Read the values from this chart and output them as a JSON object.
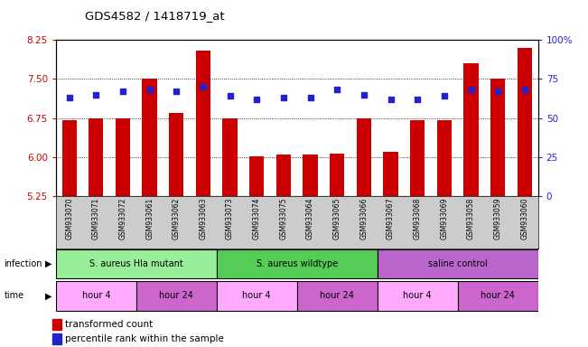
{
  "title": "GDS4582 / 1418719_at",
  "samples": [
    "GSM933070",
    "GSM933071",
    "GSM933072",
    "GSM933061",
    "GSM933062",
    "GSM933063",
    "GSM933073",
    "GSM933074",
    "GSM933075",
    "GSM933064",
    "GSM933065",
    "GSM933066",
    "GSM933067",
    "GSM933068",
    "GSM933069",
    "GSM933058",
    "GSM933059",
    "GSM933060"
  ],
  "bar_values": [
    6.7,
    6.75,
    6.75,
    7.5,
    6.85,
    8.05,
    6.75,
    6.02,
    6.05,
    6.05,
    6.07,
    6.75,
    6.1,
    6.7,
    6.7,
    7.8,
    7.5,
    8.1
  ],
  "percentile_values": [
    63,
    65,
    67,
    68,
    67,
    70,
    64,
    62,
    63,
    63,
    68,
    65,
    62,
    62,
    64,
    68,
    67,
    68
  ],
  "ylim_left": [
    5.25,
    8.25
  ],
  "ylim_right": [
    0,
    100
  ],
  "yticks_left": [
    5.25,
    6.0,
    6.75,
    7.5,
    8.25
  ],
  "yticks_right": [
    0,
    25,
    50,
    75,
    100
  ],
  "grid_values": [
    6.0,
    6.75,
    7.5
  ],
  "bar_color": "#cc0000",
  "dot_color": "#2222cc",
  "bar_bottom": 5.25,
  "infection_color_light": "#99ee99",
  "infection_color_dark": "#55cc55",
  "saline_color": "#bb66cc",
  "time_color_light": "#ffaaff",
  "time_color_dark": "#cc66cc",
  "bg_color": "#cccccc",
  "legend_red_label": "transformed count",
  "legend_blue_label": "percentile rank within the sample",
  "infection_groups": [
    {
      "label": "S. aureus Hla mutant",
      "start": 0,
      "end": 6
    },
    {
      "label": "S. aureus wildtype",
      "start": 6,
      "end": 12
    },
    {
      "label": "saline control",
      "start": 12,
      "end": 18
    }
  ],
  "time_groups": [
    {
      "label": "hour 4",
      "start": 0,
      "end": 3
    },
    {
      "label": "hour 24",
      "start": 3,
      "end": 6
    },
    {
      "label": "hour 4",
      "start": 6,
      "end": 9
    },
    {
      "label": "hour 24",
      "start": 9,
      "end": 12
    },
    {
      "label": "hour 4",
      "start": 12,
      "end": 15
    },
    {
      "label": "hour 24",
      "start": 15,
      "end": 18
    }
  ]
}
